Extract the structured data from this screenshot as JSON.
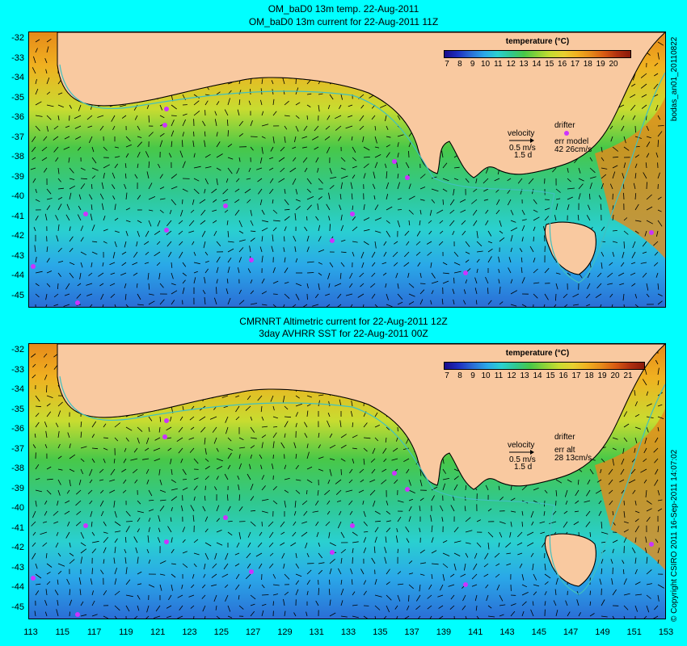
{
  "top": {
    "title_line1": "OM_baD0 13m temp. 22-Aug-2011",
    "title_line2": "OM_baD0 13m current for 22-Aug-2011 11Z",
    "legend": {
      "title": "temperature (°C)",
      "ticks": [
        "7",
        "8",
        "9",
        "10",
        "11",
        "12",
        "13",
        "14",
        "15",
        "16",
        "17",
        "18",
        "19",
        "20"
      ],
      "velocity_label": "velocity",
      "velocity_value": "0.5 m/s",
      "velocity_time": "1.5 d",
      "drifter_label": "drifter",
      "err_label": "err model",
      "err_value": "42 26cm/s"
    },
    "side_label": "bodas_an01_20110822"
  },
  "bottom": {
    "title_line1": "CMRNRT Altimetric current for 22-Aug-2011 12Z",
    "title_line2": "3day AVHRR SST for 22-Aug-2011 00Z",
    "legend": {
      "title": "temperature (°C)",
      "ticks": [
        "7",
        "8",
        "9",
        "10",
        "11",
        "12",
        "13",
        "14",
        "15",
        "16",
        "17",
        "18",
        "19",
        "20",
        "21"
      ],
      "velocity_label": "velocity",
      "velocity_value": "0.5 m/s",
      "velocity_time": "1.5 d",
      "drifter_label": "drifter",
      "err_label": "err alt",
      "err_value": "28 13cm/s"
    },
    "side_label": "© Copyright CSIRO 2011   16-Sep-2011 14:07:02"
  },
  "y_ticks": [
    "-32",
    "-33",
    "-34",
    "-35",
    "-36",
    "-37",
    "-38",
    "-39",
    "-40",
    "-41",
    "-42",
    "-43",
    "-44",
    "-45"
  ],
  "x_ticks": [
    "113",
    "115",
    "117",
    "119",
    "121",
    "123",
    "125",
    "127",
    "129",
    "131",
    "133",
    "135",
    "137",
    "139",
    "141",
    "143",
    "145",
    "147",
    "149",
    "151",
    "153"
  ],
  "colors": {
    "background": "#00ffff",
    "land": "#f9c9a0",
    "drifter": "#cc33ff",
    "warm": "#e68a1a",
    "cold": "#2a6ed6"
  }
}
